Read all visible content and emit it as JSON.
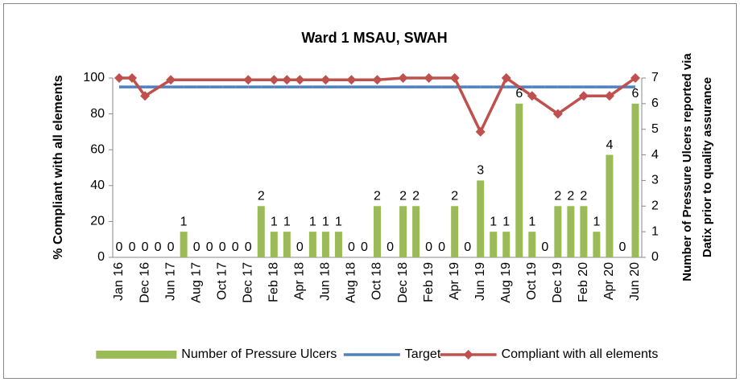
{
  "chart_data": {
    "type": "combo",
    "title": "Ward 1 MSAU, SWAH",
    "y_label": "% Compliant with all elements",
    "y2_label": [
      "Number of Pressure Ulcers reported via",
      "Datix prior to quality assurance"
    ],
    "categories": [
      "Jan 16",
      null,
      "Dec 16",
      null,
      "Jun 17",
      null,
      "Aug 17",
      null,
      "Oct 17",
      null,
      "Dec 17",
      null,
      "Feb 18",
      null,
      "Apr 18",
      null,
      "Jun 18",
      null,
      "Aug 18",
      null,
      "Oct 18",
      null,
      "Dec 18",
      null,
      "Feb 19",
      null,
      "Apr 19",
      null,
      "Jun 19",
      null,
      "Aug 19",
      null,
      "Oct 19",
      null,
      "Dec 19",
      null,
      "Feb 20",
      null,
      "Apr 20",
      null,
      "Jun 20"
    ],
    "ylim": [
      0,
      100
    ],
    "yticks": [
      0,
      20,
      40,
      60,
      80,
      100
    ],
    "y2lim": [
      0,
      7
    ],
    "y2ticks": [
      0,
      1,
      2,
      3,
      4,
      5,
      6,
      7
    ],
    "legend": "bottom",
    "series": [
      {
        "name": "Number of Pressure Ulcers",
        "type": "bar",
        "axis": "y2",
        "color": "#9bbb59",
        "data_labels": true,
        "values": [
          0,
          0,
          0,
          0,
          0,
          1,
          0,
          0,
          0,
          0,
          0,
          2,
          1,
          1,
          0,
          1,
          1,
          1,
          0,
          0,
          2,
          0,
          2,
          2,
          0,
          0,
          2,
          0,
          3,
          1,
          1,
          6,
          1,
          0,
          2,
          2,
          2,
          1,
          4,
          0,
          6
        ]
      },
      {
        "name": "Target",
        "type": "line",
        "axis": "y",
        "color": "#4f81bd",
        "marker": false,
        "values": [
          95,
          95,
          95,
          95,
          95,
          95,
          95,
          95,
          95,
          95,
          95,
          95,
          95,
          95,
          95,
          95,
          95,
          95,
          95,
          95,
          95,
          95,
          95,
          95,
          95,
          95,
          95,
          95,
          95,
          95,
          95,
          95,
          95,
          95,
          95,
          95,
          95,
          95,
          95,
          95,
          95
        ]
      },
      {
        "name": "Compliant with all elements",
        "type": "line",
        "axis": "y",
        "color": "#c0504d",
        "marker": true,
        "values": [
          100,
          100,
          90,
          null,
          99,
          null,
          null,
          null,
          null,
          null,
          99,
          null,
          99,
          99,
          99,
          null,
          99,
          null,
          99,
          null,
          99,
          null,
          100,
          null,
          100,
          null,
          100,
          null,
          70,
          null,
          100,
          null,
          90,
          null,
          80,
          null,
          90,
          null,
          90,
          null,
          100
        ]
      }
    ]
  }
}
